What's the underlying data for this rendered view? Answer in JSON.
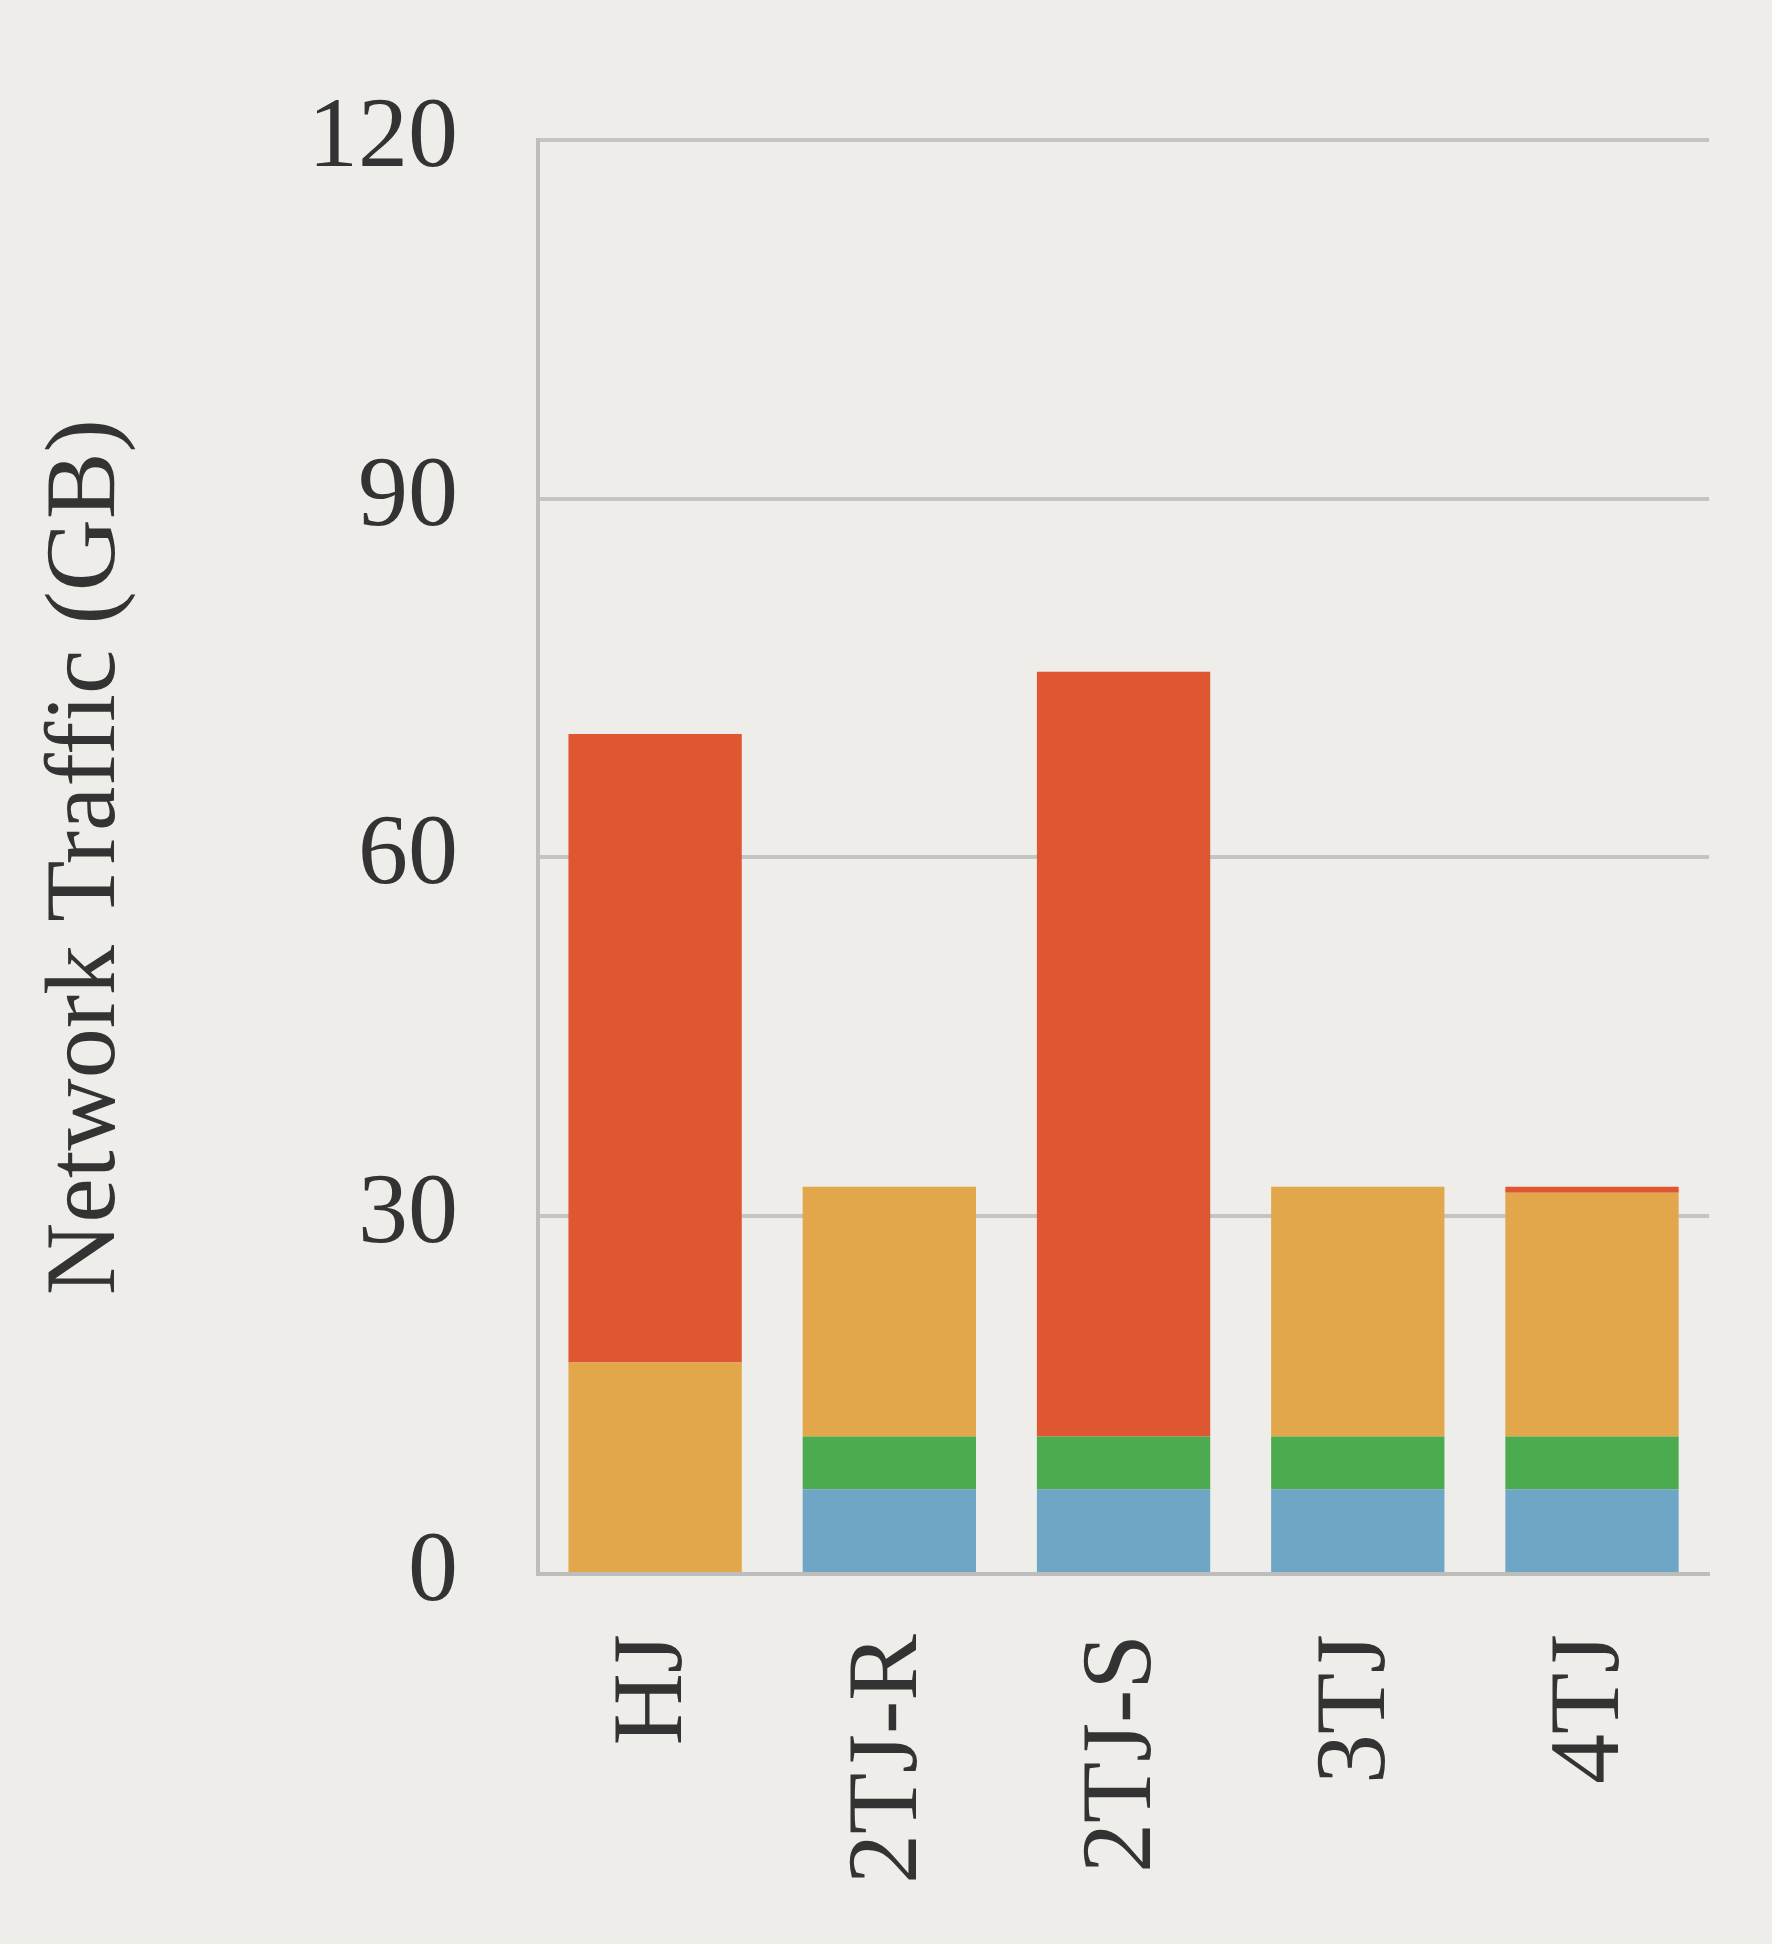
{
  "chart_data": {
    "type": "bar",
    "stacked": true,
    "ylabel": "Network Traffic (GB)",
    "categories": [
      "HJ",
      "2TJ-R",
      "2TJ-S",
      "3TJ",
      "4TJ"
    ],
    "series": [
      {
        "color": "#6fa6c6",
        "values": [
          null,
          7.1,
          7.1,
          7.1,
          7.1
        ]
      },
      {
        "color": "#4dab4f",
        "values": [
          null,
          4.4,
          4.4,
          4.4,
          4.4
        ]
      },
      {
        "color": "#e2a74a",
        "values": [
          17.7,
          20.9,
          null,
          20.9,
          20.4
        ]
      },
      {
        "color": "#df5633",
        "values": [
          52.6,
          null,
          64.0,
          null,
          0.5
        ]
      }
    ],
    "ylim": [
      0,
      120
    ],
    "yticks": [
      0,
      30,
      60,
      90,
      120
    ],
    "grid": "y",
    "legend": false
  }
}
